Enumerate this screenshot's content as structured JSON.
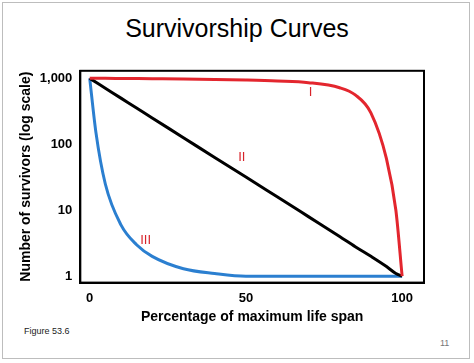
{
  "chart_data": {
    "type": "line",
    "title": "Survivorship Curves",
    "x_label": "Percentage of maximum life span",
    "y_label": "Number of survivors (log scale)",
    "x": [
      0,
      2,
      5,
      10,
      15,
      20,
      30,
      40,
      50,
      60,
      70,
      80,
      85,
      90,
      95,
      98,
      100
    ],
    "series": [
      {
        "name": "I",
        "color": "#e3262e",
        "values": [
          1000,
          1000,
          1000,
          995,
          990,
          985,
          975,
          960,
          940,
          910,
          860,
          720,
          560,
          300,
          60,
          10,
          1
        ]
      },
      {
        "name": "II",
        "color": "#000000",
        "values": [
          1000,
          871,
          708,
          501,
          355,
          251,
          126,
          63,
          32,
          16,
          8,
          4,
          2.8,
          2,
          1.4,
          1.1,
          1
        ]
      },
      {
        "name": "III",
        "color": "#2b7fd0",
        "values": [
          1000,
          150,
          25,
          6,
          3,
          2,
          1.3,
          1.1,
          1,
          1,
          1,
          1,
          1,
          1,
          1,
          1,
          1
        ]
      }
    ],
    "xlim": [
      -3,
      107
    ],
    "ylim": [
      0.8,
      1300
    ],
    "xticks": [
      0,
      50,
      100
    ],
    "yticks": [
      1,
      10,
      100,
      {
        "value": 1000,
        "label": "1,000"
      }
    ],
    "log": "y",
    "grid": false,
    "figure_label": "Figure 53.6",
    "page_number": "11"
  }
}
